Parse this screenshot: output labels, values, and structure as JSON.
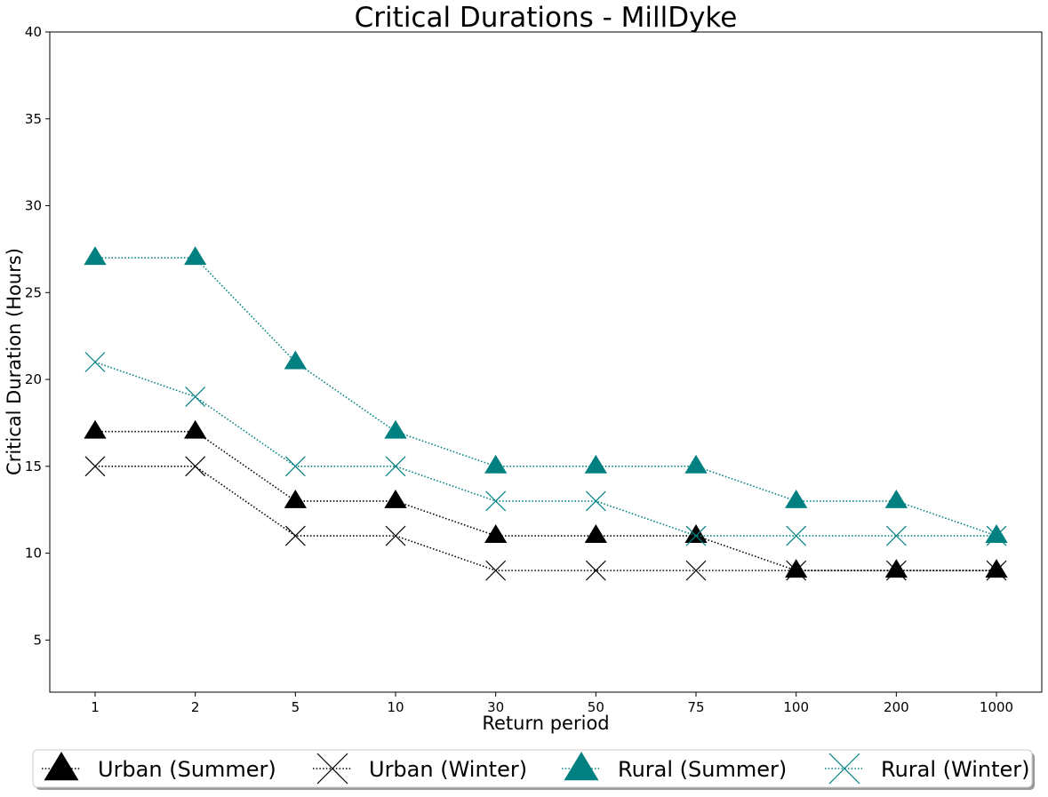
{
  "chart_data": {
    "type": "line",
    "title": "Critical Durations - MillDyke",
    "xlabel": "Return period",
    "ylabel": "Critical Duration (Hours)",
    "categories": [
      "1",
      "2",
      "5",
      "10",
      "30",
      "50",
      "75",
      "100",
      "200",
      "1000"
    ],
    "ylim": [
      2,
      40
    ],
    "yticks": [
      5,
      10,
      15,
      20,
      25,
      30,
      35,
      40
    ],
    "grid": false,
    "legend_position": "bottom",
    "series": [
      {
        "name": "Urban (Summer)",
        "values": [
          17,
          17,
          13,
          13,
          11,
          11,
          11,
          9,
          9,
          9
        ],
        "color": "#000000",
        "marker": "triangle"
      },
      {
        "name": "Urban (Winter)",
        "values": [
          15,
          15,
          11,
          11,
          9,
          9,
          9,
          9,
          9,
          9
        ],
        "color": "#000000",
        "marker": "x"
      },
      {
        "name": "Rural (Summer)",
        "values": [
          27,
          27,
          21,
          17,
          15,
          15,
          15,
          13,
          13,
          11
        ],
        "color": "#008080",
        "marker": "triangle"
      },
      {
        "name": "Rural (Winter)",
        "values": [
          21,
          19,
          15,
          15,
          13,
          13,
          11,
          11,
          11,
          11
        ],
        "color": "#008080",
        "marker": "x"
      }
    ]
  }
}
